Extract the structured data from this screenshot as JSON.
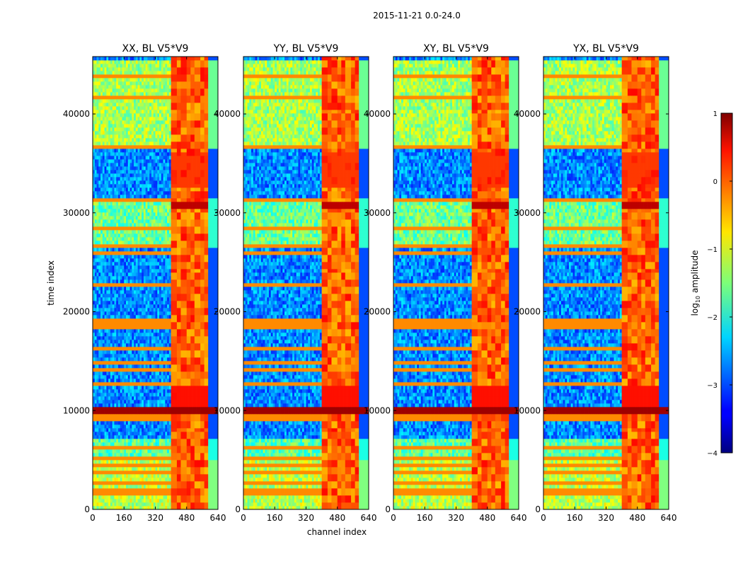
{
  "figure": {
    "suptitle": "2015-11-21 0.0-24.0",
    "xlabel": "channel index",
    "ylabel": "time index"
  },
  "chart_data": {
    "type": "heatmap",
    "title": "2015-11-21 0.0-24.0",
    "xlabel": "channel index",
    "ylabel": "time index",
    "xlim": [
      0,
      640
    ],
    "ylim": [
      0,
      45800
    ],
    "x_ticks": [
      0,
      160,
      320,
      480,
      640
    ],
    "y_ticks": [
      0,
      10000,
      20000,
      30000,
      40000
    ],
    "panels": [
      {
        "title": "XX, BL V5*V9",
        "x_tick_labels": [
          "0",
          "160",
          "320",
          "480",
          "640"
        ],
        "y_tick_labels": [
          "0",
          "10000",
          "20000",
          "30000",
          "40000"
        ]
      },
      {
        "title": "YY, BL V5*V9",
        "x_tick_labels": [
          "0",
          "160",
          "320",
          "480",
          "640"
        ],
        "y_tick_labels": [
          "0",
          "10000",
          "20000",
          "30000",
          "40000"
        ]
      },
      {
        "title": "XY, BL V5*V9",
        "x_tick_labels": [
          "0",
          "160",
          "320",
          "480",
          "640"
        ],
        "y_tick_labels": [
          "0",
          "10000",
          "20000",
          "30000",
          "40000"
        ]
      },
      {
        "title": "YX, BL V5*V9",
        "x_tick_labels": [
          "0",
          "160",
          "320",
          "480",
          "640"
        ],
        "y_tick_labels": [
          "0",
          "10000",
          "20000",
          "30000",
          "40000"
        ]
      }
    ],
    "colorbar": {
      "label": "log10 amplitude",
      "label_base": "log",
      "label_sub": "10",
      "label_rest": " amplitude",
      "range": [
        -4,
        1
      ],
      "tick_values": [
        1,
        0,
        -1,
        -2,
        -3,
        -4
      ],
      "tick_labels": [
        "1",
        "0",
        "−1",
        "−2",
        "−3",
        "−4"
      ]
    },
    "features": {
      "rfi_channel_band": [
        405,
        600
      ],
      "bright_time_rows": [
        10000,
        30800
      ],
      "band_edge_cut_channel": 595
    }
  }
}
